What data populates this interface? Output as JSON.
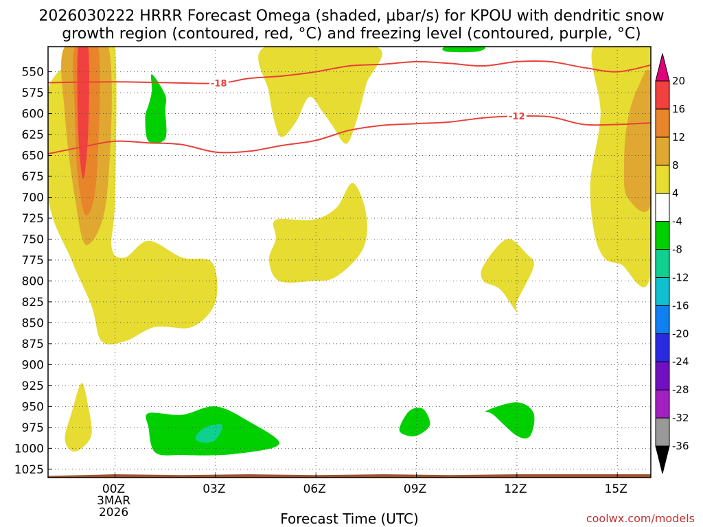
{
  "title_line1": "2026030222 HRRR Forecast Omega (shaded, µbar/s) for KPOU with dendritic snow",
  "title_line2": "growth region (contoured, red, °C) and freezing level (contoured, purple, °C)",
  "credit": "coolwx.com/models",
  "colors": {
    "frame": "#000000",
    "grid": "#555555",
    "ground": "#a0522d",
    "dgz_line": "#e8403a"
  },
  "chart_data": {
    "type": "heatmap",
    "title": "2026030222 HRRR Forecast Omega (shaded, µbar/s) for KPOU with dendritic snow growth region (contoured, red, °C) and freezing level (contoured, purple, °C)",
    "xlabel": "Forecast Time (UTC)",
    "ylabel": "",
    "x_unit": "hours from 00Z 3 MAR 2026",
    "xlim": [
      -2,
      16
    ],
    "ylim": [
      1035,
      520
    ],
    "x_ticks": [
      {
        "x": 0,
        "lines": [
          "00Z",
          "3MAR",
          "2026"
        ]
      },
      {
        "x": 3,
        "lines": [
          "03Z"
        ]
      },
      {
        "x": 6,
        "lines": [
          "06Z"
        ]
      },
      {
        "x": 9,
        "lines": [
          "09Z"
        ]
      },
      {
        "x": 12,
        "lines": [
          "12Z"
        ]
      },
      {
        "x": 15,
        "lines": [
          "15Z"
        ]
      }
    ],
    "y_ticks": [
      550,
      575,
      600,
      625,
      650,
      675,
      700,
      725,
      750,
      775,
      800,
      825,
      850,
      875,
      900,
      925,
      950,
      975,
      1000,
      1025
    ],
    "colorbar": {
      "levels": [
        -36,
        -32,
        -28,
        -24,
        -20,
        -16,
        -12,
        -8,
        -4,
        4,
        8,
        12,
        16,
        20
      ],
      "colors": [
        "#999999",
        "#a020c0",
        "#7010c0",
        "#2a2ae0",
        "#1080f0",
        "#10c0d0",
        "#10d090",
        "#00d000",
        "#ffffff",
        "#e6dc32",
        "#e0a830",
        "#e8842a",
        "#f04040",
        "#e0007a"
      ],
      "under_color": "#000000",
      "over_color": "#e0007a"
    },
    "omega_regions": [
      {
        "level": "4 to 8",
        "fill": "#e6dc32",
        "points": [
          [
            -2,
            570
          ],
          [
            -0.5,
            520
          ],
          [
            0.0,
            520
          ],
          [
            0.0,
            700
          ],
          [
            -0.1,
            760
          ],
          [
            0.3,
            772
          ],
          [
            1.0,
            752
          ],
          [
            2.0,
            772
          ],
          [
            2.9,
            778
          ],
          [
            3.0,
            825
          ],
          [
            2.3,
            855
          ],
          [
            1.2,
            855
          ],
          [
            0.3,
            872
          ],
          [
            -0.4,
            872
          ],
          [
            -0.7,
            830
          ],
          [
            -1.3,
            775
          ],
          [
            -2,
            700
          ]
        ]
      },
      {
        "level": "8 to 12",
        "fill": "#e0a830",
        "points": [
          [
            -1.5,
            520
          ],
          [
            -0.2,
            520
          ],
          [
            -0.25,
            700
          ],
          [
            -0.85,
            757
          ],
          [
            -1.2,
            700
          ],
          [
            -1.5,
            600
          ]
        ]
      },
      {
        "level": "12 to 16",
        "fill": "#e8842a",
        "points": [
          [
            -1.2,
            520
          ],
          [
            -0.5,
            520
          ],
          [
            -0.55,
            675
          ],
          [
            -0.85,
            722
          ],
          [
            -1.1,
            680
          ],
          [
            -1.2,
            600
          ]
        ]
      },
      {
        "level": "16 to 20",
        "fill": "#f04040",
        "points": [
          [
            -1.1,
            520
          ],
          [
            -0.8,
            520
          ],
          [
            -0.8,
            620
          ],
          [
            -0.95,
            678
          ],
          [
            -1.1,
            620
          ]
        ]
      },
      {
        "level": "4 to 8",
        "fill": "#e6dc32",
        "points": [
          [
            4.5,
            520
          ],
          [
            7.8,
            520
          ],
          [
            7.5,
            565
          ],
          [
            7.2,
            610
          ],
          [
            6.9,
            636
          ],
          [
            6.5,
            615
          ],
          [
            6.2,
            598
          ],
          [
            5.8,
            580
          ],
          [
            5.4,
            610
          ],
          [
            5.0,
            628
          ],
          [
            4.8,
            615
          ],
          [
            4.6,
            575
          ]
        ]
      },
      {
        "level": "4 to 8",
        "fill": "#e6dc32",
        "points": [
          [
            4.8,
            727
          ],
          [
            5.9,
            727
          ],
          [
            6.6,
            713
          ],
          [
            7.1,
            683
          ],
          [
            7.5,
            720
          ],
          [
            7.4,
            762
          ],
          [
            6.6,
            795
          ],
          [
            5.9,
            800
          ],
          [
            4.9,
            800
          ],
          [
            4.6,
            775
          ],
          [
            4.8,
            750
          ]
        ]
      },
      {
        "level": "4 to 8",
        "fill": "#e6dc32",
        "points": [
          [
            11.0,
            782
          ],
          [
            11.7,
            750
          ],
          [
            12.3,
            768
          ],
          [
            12.5,
            783
          ],
          [
            12.0,
            825
          ],
          [
            12.0,
            837
          ],
          [
            11.5,
            810
          ],
          [
            11.0,
            800
          ]
        ]
      },
      {
        "level": "4 to 8",
        "fill": "#e6dc32",
        "points": [
          [
            14.3,
            520
          ],
          [
            16,
            520
          ],
          [
            16,
            790
          ],
          [
            15.1,
            780
          ],
          [
            14.6,
            772
          ],
          [
            14.3,
            740
          ],
          [
            14.2,
            680
          ],
          [
            14.5,
            600
          ]
        ]
      },
      {
        "level": "8 to 12",
        "fill": "#e0a830",
        "points": [
          [
            16,
            556
          ],
          [
            15.6,
            570
          ],
          [
            15.3,
            610
          ],
          [
            15.2,
            660
          ],
          [
            15.3,
            700
          ],
          [
            16,
            707
          ]
        ]
      },
      {
        "level": "4 to 8",
        "fill": "#e6dc32",
        "points": [
          [
            -1.5,
            988
          ],
          [
            -1.3,
            958
          ],
          [
            -1.0,
            922
          ],
          [
            -0.8,
            950
          ],
          [
            -0.7,
            983
          ],
          [
            -1.0,
            1000
          ],
          [
            -1.3,
            1003
          ]
        ]
      },
      {
        "level": "-8 to -4",
        "fill": "#00d000",
        "points": [
          [
            1.0,
            590
          ],
          [
            1.1,
            573
          ],
          [
            1.1,
            553
          ],
          [
            1.5,
            578
          ],
          [
            1.5,
            596
          ],
          [
            1.5,
            630
          ],
          [
            1.0,
            633
          ],
          [
            0.9,
            605
          ]
        ]
      },
      {
        "level": "-8 to -4",
        "fill": "#00d000",
        "points": [
          [
            9.9,
            520
          ],
          [
            11.0,
            520
          ],
          [
            10.8,
            526
          ],
          [
            9.9,
            526
          ]
        ]
      },
      {
        "level": "-8 to -4",
        "fill": "#00d000",
        "points": [
          [
            1.0,
            958
          ],
          [
            2.0,
            960
          ],
          [
            3.0,
            950
          ],
          [
            4.0,
            968
          ],
          [
            4.9,
            995
          ],
          [
            3.5,
            1007
          ],
          [
            2.0,
            1008
          ],
          [
            1.2,
            1005
          ],
          [
            1.0,
            975
          ]
        ]
      },
      {
        "level": "-12 to -8",
        "fill": "#10d090",
        "points": [
          [
            2.4,
            987
          ],
          [
            2.7,
            975
          ],
          [
            3.2,
            972
          ],
          [
            3.0,
            990
          ],
          [
            2.6,
            993
          ]
        ]
      },
      {
        "level": "-8 to -4",
        "fill": "#00d000",
        "points": [
          [
            8.5,
            975
          ],
          [
            8.8,
            955
          ],
          [
            9.2,
            953
          ],
          [
            9.4,
            972
          ],
          [
            9.0,
            985
          ],
          [
            8.6,
            983
          ]
        ]
      },
      {
        "level": "-8 to -4",
        "fill": "#00d000",
        "points": [
          [
            11.1,
            955
          ],
          [
            12.0,
            945
          ],
          [
            12.5,
            958
          ],
          [
            12.4,
            985
          ],
          [
            12.0,
            985
          ],
          [
            11.3,
            960
          ]
        ]
      }
    ],
    "dgz_contours": [
      {
        "label": "-18",
        "label_at": 3.1,
        "points": [
          [
            -2,
            563
          ],
          [
            0,
            562
          ],
          [
            1.5,
            563
          ],
          [
            2.7,
            564
          ],
          [
            3.3,
            563
          ],
          [
            4.0,
            558
          ],
          [
            5.0,
            555
          ],
          [
            6.0,
            550
          ],
          [
            7.0,
            543
          ],
          [
            8.0,
            541
          ],
          [
            9.0,
            538
          ],
          [
            10.0,
            540
          ],
          [
            11.0,
            543
          ],
          [
            12.0,
            538
          ],
          [
            13.0,
            538
          ],
          [
            14.0,
            545
          ],
          [
            15.0,
            550
          ],
          [
            16.0,
            542
          ]
        ]
      },
      {
        "label": "-12",
        "label_at": 12.0,
        "points": [
          [
            -2,
            648
          ],
          [
            -1,
            640
          ],
          [
            0,
            633
          ],
          [
            1,
            635
          ],
          [
            2,
            637
          ],
          [
            3,
            646
          ],
          [
            4,
            645
          ],
          [
            5,
            638
          ],
          [
            6,
            632
          ],
          [
            7,
            620
          ],
          [
            8,
            614
          ],
          [
            9,
            612
          ],
          [
            10,
            610
          ],
          [
            11,
            605
          ],
          [
            12,
            603
          ],
          [
            13,
            604
          ],
          [
            14,
            613
          ],
          [
            15,
            613
          ],
          [
            16,
            611
          ]
        ]
      }
    ],
    "ground_pressure": [
      [
        -2,
        1033
      ],
      [
        0,
        1031
      ],
      [
        2,
        1032
      ],
      [
        4,
        1031
      ],
      [
        6,
        1032
      ],
      [
        8,
        1031
      ],
      [
        10,
        1032
      ],
      [
        12,
        1031
      ],
      [
        14,
        1031
      ],
      [
        16,
        1031
      ]
    ]
  }
}
